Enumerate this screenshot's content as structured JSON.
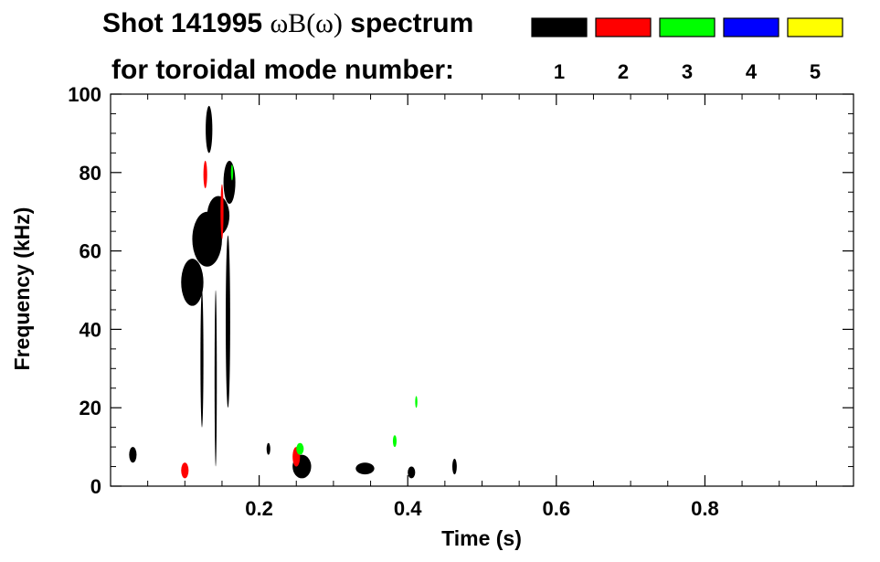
{
  "chart_data": {
    "type": "heatmap",
    "title_line1_prefix": "Shot 141995 ",
    "title_line1_math": "ωB(ω)",
    "title_line1_suffix": " spectrum",
    "title_line2": "for toroidal mode number:",
    "xlabel": "Time (s)",
    "ylabel": "Frequency (kHz)",
    "xlim": [
      0.0,
      1.0
    ],
    "ylim": [
      0,
      100
    ],
    "x_ticks": [
      0.2,
      0.4,
      0.6,
      0.8
    ],
    "x_tick_labels": [
      "0.2",
      "0.4",
      "0.6",
      "0.8"
    ],
    "y_ticks": [
      0,
      20,
      40,
      60,
      80,
      100
    ],
    "y_tick_labels": [
      "0",
      "20",
      "40",
      "60",
      "80",
      "100"
    ],
    "grid": false,
    "legend_position": "top-right",
    "legend": [
      {
        "label": "1",
        "color": "#000000"
      },
      {
        "label": "2",
        "color": "#ff0000"
      },
      {
        "label": "3",
        "color": "#00ff00"
      },
      {
        "label": "4",
        "color": "#0000ff"
      },
      {
        "label": "5",
        "color": "#ffff00"
      }
    ],
    "features": [
      {
        "mode": "1",
        "t": [
          0.025,
          0.035
        ],
        "f": [
          6,
          10
        ]
      },
      {
        "mode": "1",
        "t": [
          0.095,
          0.125
        ],
        "f": [
          46,
          58
        ]
      },
      {
        "mode": "1",
        "t": [
          0.11,
          0.15
        ],
        "f": [
          56,
          70
        ]
      },
      {
        "mode": "1",
        "t": [
          0.13,
          0.16
        ],
        "f": [
          64,
          74
        ]
      },
      {
        "mode": "1",
        "t": [
          0.128,
          0.137
        ],
        "f": [
          85,
          97
        ]
      },
      {
        "mode": "1",
        "t": [
          0.152,
          0.168
        ],
        "f": [
          72,
          83
        ]
      },
      {
        "mode": "1",
        "t": [
          0.121,
          0.125
        ],
        "f": [
          15,
          50
        ]
      },
      {
        "mode": "1",
        "t": [
          0.155,
          0.161
        ],
        "f": [
          20,
          64
        ]
      },
      {
        "mode": "1",
        "t": [
          0.14,
          0.143
        ],
        "f": [
          5,
          50
        ]
      },
      {
        "mode": "1",
        "t": [
          0.21,
          0.215
        ],
        "f": [
          8,
          11
        ]
      },
      {
        "mode": "1",
        "t": [
          0.245,
          0.27
        ],
        "f": [
          2,
          8
        ]
      },
      {
        "mode": "1",
        "t": [
          0.33,
          0.355
        ],
        "f": [
          3,
          6
        ]
      },
      {
        "mode": "1",
        "t": [
          0.4,
          0.41
        ],
        "f": [
          2,
          5
        ]
      },
      {
        "mode": "1",
        "t": [
          0.46,
          0.466
        ],
        "f": [
          3,
          7
        ]
      },
      {
        "mode": "2",
        "t": [
          0.125,
          0.13
        ],
        "f": [
          76,
          83
        ]
      },
      {
        "mode": "2",
        "t": [
          0.148,
          0.152
        ],
        "f": [
          63,
          77
        ]
      },
      {
        "mode": "2",
        "t": [
          0.245,
          0.255
        ],
        "f": [
          5,
          10
        ]
      },
      {
        "mode": "2",
        "t": [
          0.095,
          0.105
        ],
        "f": [
          2,
          6
        ]
      },
      {
        "mode": "3",
        "t": [
          0.162,
          0.165
        ],
        "f": [
          78,
          82
        ]
      },
      {
        "mode": "3",
        "t": [
          0.25,
          0.26
        ],
        "f": [
          8,
          11
        ]
      },
      {
        "mode": "3",
        "t": [
          0.41,
          0.413
        ],
        "f": [
          20,
          23
        ]
      },
      {
        "mode": "3",
        "t": [
          0.38,
          0.385
        ],
        "f": [
          10,
          13
        ]
      }
    ]
  }
}
